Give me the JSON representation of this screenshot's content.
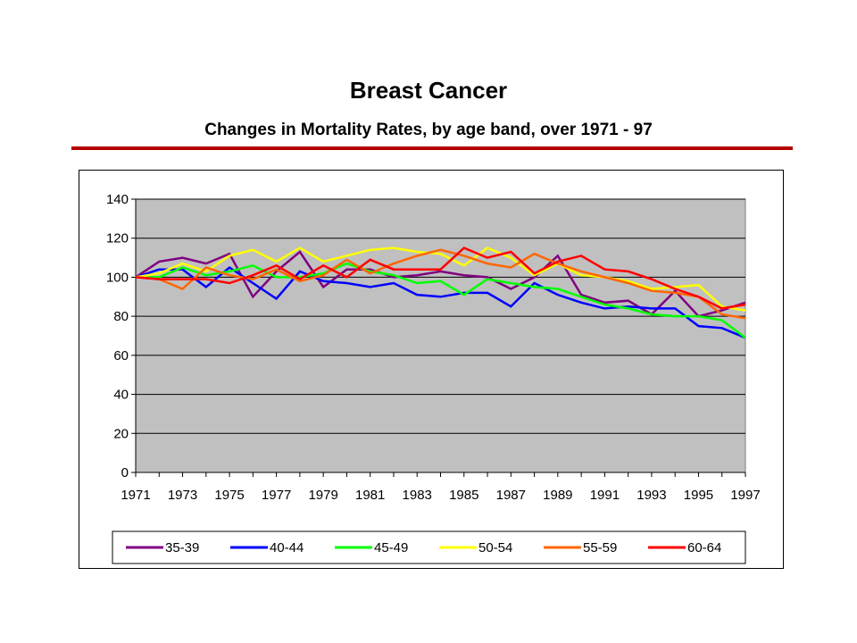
{
  "title": "Breast Cancer",
  "subtitle": "Changes in Mortality Rates, by age band, over 1971 - 97",
  "colors": {
    "rule": "#b40000",
    "plot_background": "#c0c0c0"
  },
  "chart_data": {
    "type": "line",
    "title": "",
    "xlabel": "",
    "ylabel": "",
    "ylim": [
      0,
      140
    ],
    "yticks": [
      0,
      20,
      40,
      60,
      80,
      100,
      120,
      140
    ],
    "x": [
      1971,
      1972,
      1973,
      1974,
      1975,
      1976,
      1977,
      1978,
      1979,
      1980,
      1981,
      1982,
      1983,
      1984,
      1985,
      1986,
      1987,
      1988,
      1989,
      1990,
      1991,
      1992,
      1993,
      1994,
      1995,
      1996,
      1997
    ],
    "xtick_labels": [
      "1971",
      "1973",
      "1975",
      "1977",
      "1979",
      "1981",
      "1983",
      "1985",
      "1987",
      "1989",
      "1991",
      "1993",
      "1995",
      "1997"
    ],
    "grid": "horizontal",
    "legend_position": "bottom",
    "series": [
      {
        "name": "35-39",
        "color": "#800080",
        "values": [
          100,
          108,
          110,
          107,
          112,
          90,
          103,
          113,
          95,
          104,
          104,
          100,
          101,
          103,
          101,
          100,
          94,
          100,
          111,
          91,
          87,
          88,
          81,
          93,
          80,
          83,
          87
        ]
      },
      {
        "name": "40-44",
        "color": "#0000ff",
        "values": [
          100,
          104,
          104,
          95,
          105,
          97,
          89,
          103,
          98,
          97,
          95,
          97,
          91,
          90,
          92,
          92,
          85,
          97,
          91,
          87,
          84,
          85,
          84,
          84,
          75,
          74,
          69
        ]
      },
      {
        "name": "45-49",
        "color": "#00ff00",
        "values": [
          100,
          100,
          105,
          101,
          103,
          106,
          100,
          100,
          102,
          107,
          103,
          101,
          97,
          98,
          91,
          99,
          97,
          95,
          94,
          90,
          86,
          84,
          81,
          80,
          80,
          78,
          69
        ]
      },
      {
        "name": "50-54",
        "color": "#ffff00",
        "values": [
          100,
          102,
          107,
          103,
          111,
          114,
          108,
          115,
          108,
          111,
          114,
          115,
          113,
          112,
          106,
          115,
          110,
          101,
          107,
          101,
          100,
          98,
          94,
          95,
          96,
          85,
          83
        ]
      },
      {
        "name": "55-59",
        "color": "#ff6600",
        "values": [
          100,
          99,
          94,
          105,
          101,
          99,
          104,
          98,
          101,
          109,
          102,
          107,
          111,
          114,
          111,
          107,
          105,
          112,
          107,
          103,
          100,
          97,
          93,
          92,
          90,
          81,
          79
        ]
      },
      {
        "name": "60-64",
        "color": "#ff0000",
        "values": [
          100,
          99,
          99,
          99,
          97,
          101,
          106,
          99,
          106,
          100,
          109,
          104,
          104,
          104,
          115,
          110,
          113,
          102,
          108,
          111,
          104,
          103,
          99,
          94,
          90,
          84,
          86
        ]
      }
    ]
  }
}
